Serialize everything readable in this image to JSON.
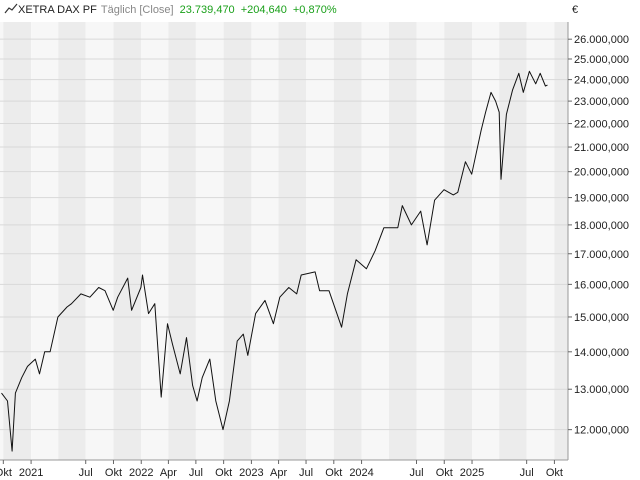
{
  "header": {
    "instrument": "XETRA DAX PF",
    "frequency": "Täglich [Close]",
    "last": "23.739,470",
    "change": "+204,640",
    "change_pct": "+0,870%"
  },
  "colors": {
    "line": "#111111",
    "positive": "#1aa01a",
    "band_shade": "#ececec",
    "band_light": "#f7f7f7",
    "grid": "#d9d9d9"
  },
  "chart_data": {
    "type": "line",
    "y_scale": "log",
    "ylabel": "€",
    "ylim": [
      11300000,
      26900000
    ],
    "xlim": [
      "2020-09-20",
      "2025-11-15"
    ],
    "y_ticks": [
      {
        "value": 12000000,
        "label": "12.000,000"
      },
      {
        "value": 13000000,
        "label": "13.000,000"
      },
      {
        "value": 14000000,
        "label": "14.000,000"
      },
      {
        "value": 15000000,
        "label": "15.000,000"
      },
      {
        "value": 16000000,
        "label": "16.000,000"
      },
      {
        "value": 17000000,
        "label": "17.000,000"
      },
      {
        "value": 18000000,
        "label": "18.000,000"
      },
      {
        "value": 19000000,
        "label": "19.000,000"
      },
      {
        "value": 20000000,
        "label": "20.000,000"
      },
      {
        "value": 21000000,
        "label": "21.000,000"
      },
      {
        "value": 22000000,
        "label": "22.000,000"
      },
      {
        "value": 23000000,
        "label": "23.000,000"
      },
      {
        "value": 24000000,
        "label": "24.000,000"
      },
      {
        "value": 25000000,
        "label": "25.000,000"
      },
      {
        "value": 26000000,
        "label": "26.000,000"
      }
    ],
    "x_ticks": [
      {
        "date": "2020-10-01",
        "label": "Okt"
      },
      {
        "date": "2021-01-01",
        "label": "2021"
      },
      {
        "date": "2021-07-01",
        "label": "Jul"
      },
      {
        "date": "2021-10-01",
        "label": "Okt"
      },
      {
        "date": "2022-01-01",
        "label": "2022"
      },
      {
        "date": "2022-04-01",
        "label": "Apr"
      },
      {
        "date": "2022-07-01",
        "label": "Jul"
      },
      {
        "date": "2022-10-01",
        "label": "Okt"
      },
      {
        "date": "2023-01-01",
        "label": "2023"
      },
      {
        "date": "2023-04-01",
        "label": "Apr"
      },
      {
        "date": "2023-07-01",
        "label": "Jul"
      },
      {
        "date": "2023-10-01",
        "label": "Okt"
      },
      {
        "date": "2024-01-01",
        "label": "2024"
      },
      {
        "date": "2024-07-01",
        "label": "Jul"
      },
      {
        "date": "2024-10-01",
        "label": "Okt"
      },
      {
        "date": "2025-01-01",
        "label": "2025"
      },
      {
        "date": "2025-07-01",
        "label": "Jul"
      },
      {
        "date": "2025-10-01",
        "label": "Okt"
      }
    ],
    "grid": true,
    "series": [
      {
        "points": [
          [
            "2020-09-25",
            12900000
          ],
          [
            "2020-10-15",
            12700000
          ],
          [
            "2020-10-30",
            11500000
          ],
          [
            "2020-11-10",
            12900000
          ],
          [
            "2020-12-01",
            13300000
          ],
          [
            "2020-12-20",
            13600000
          ],
          [
            "2021-01-15",
            13800000
          ],
          [
            "2021-01-29",
            13400000
          ],
          [
            "2021-02-15",
            14000000
          ],
          [
            "2021-03-05",
            14000000
          ],
          [
            "2021-03-31",
            15000000
          ],
          [
            "2021-04-30",
            15300000
          ],
          [
            "2021-05-15",
            15400000
          ],
          [
            "2021-06-15",
            15700000
          ],
          [
            "2021-07-15",
            15600000
          ],
          [
            "2021-08-13",
            15900000
          ],
          [
            "2021-09-03",
            15800000
          ],
          [
            "2021-09-30",
            15200000
          ],
          [
            "2021-10-15",
            15600000
          ],
          [
            "2021-11-17",
            16200000
          ],
          [
            "2021-11-30",
            15200000
          ],
          [
            "2021-12-31",
            15900000
          ],
          [
            "2022-01-05",
            16300000
          ],
          [
            "2022-01-25",
            15100000
          ],
          [
            "2022-02-15",
            15400000
          ],
          [
            "2022-03-08",
            12800000
          ],
          [
            "2022-03-29",
            14800000
          ],
          [
            "2022-04-15",
            14200000
          ],
          [
            "2022-05-10",
            13400000
          ],
          [
            "2022-05-31",
            14400000
          ],
          [
            "2022-06-20",
            13100000
          ],
          [
            "2022-07-05",
            12700000
          ],
          [
            "2022-07-22",
            13300000
          ],
          [
            "2022-08-16",
            13800000
          ],
          [
            "2022-09-05",
            12700000
          ],
          [
            "2022-09-29",
            12000000
          ],
          [
            "2022-10-20",
            12700000
          ],
          [
            "2022-11-15",
            14300000
          ],
          [
            "2022-12-05",
            14500000
          ],
          [
            "2022-12-20",
            13900000
          ],
          [
            "2023-01-15",
            15100000
          ],
          [
            "2023-02-15",
            15500000
          ],
          [
            "2023-03-15",
            14800000
          ],
          [
            "2023-04-05",
            15600000
          ],
          [
            "2023-05-05",
            15900000
          ],
          [
            "2023-05-31",
            15700000
          ],
          [
            "2023-06-15",
            16300000
          ],
          [
            "2023-07-31",
            16400000
          ],
          [
            "2023-08-15",
            15800000
          ],
          [
            "2023-09-15",
            15800000
          ],
          [
            "2023-10-27",
            14700000
          ],
          [
            "2023-11-15",
            15700000
          ],
          [
            "2023-12-14",
            16800000
          ],
          [
            "2024-01-17",
            16500000
          ],
          [
            "2024-02-15",
            17100000
          ],
          [
            "2024-03-15",
            17900000
          ],
          [
            "2024-04-15",
            17900000
          ],
          [
            "2024-04-30",
            17900000
          ],
          [
            "2024-05-15",
            18700000
          ],
          [
            "2024-06-14",
            18000000
          ],
          [
            "2024-07-15",
            18500000
          ],
          [
            "2024-08-05",
            17300000
          ],
          [
            "2024-08-30",
            18900000
          ],
          [
            "2024-09-30",
            19300000
          ],
          [
            "2024-10-31",
            19100000
          ],
          [
            "2024-11-15",
            19200000
          ],
          [
            "2024-12-10",
            20400000
          ],
          [
            "2024-12-31",
            19900000
          ],
          [
            "2025-01-31",
            21700000
          ],
          [
            "2025-02-15",
            22500000
          ],
          [
            "2025-03-05",
            23400000
          ],
          [
            "2025-03-20",
            23000000
          ],
          [
            "2025-04-01",
            22500000
          ],
          [
            "2025-04-07",
            19700000
          ],
          [
            "2025-04-25",
            22400000
          ],
          [
            "2025-05-15",
            23500000
          ],
          [
            "2025-06-05",
            24300000
          ],
          [
            "2025-06-20",
            23400000
          ],
          [
            "2025-07-10",
            24400000
          ],
          [
            "2025-07-31",
            23800000
          ],
          [
            "2025-08-15",
            24300000
          ],
          [
            "2025-09-01",
            23700000
          ],
          [
            "2025-09-08",
            23739470
          ]
        ]
      }
    ]
  }
}
